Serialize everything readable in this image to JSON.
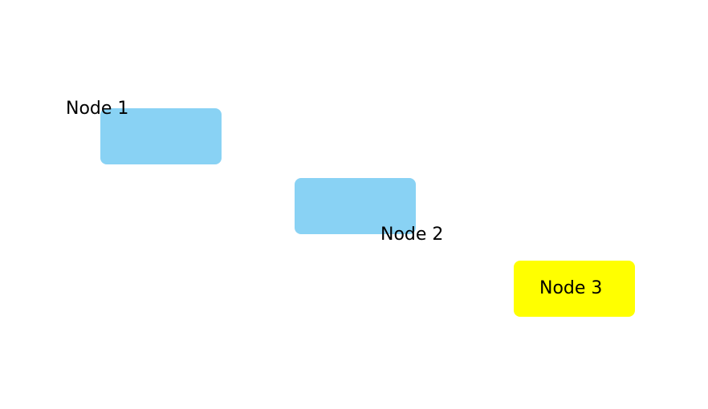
{
  "nodes": [
    {
      "label": "Node 1",
      "fill": "#89d2f4"
    },
    {
      "label": "Node 2",
      "fill": "#89d2f4"
    },
    {
      "label": "Node 3",
      "fill": "#ffff00"
    }
  ]
}
